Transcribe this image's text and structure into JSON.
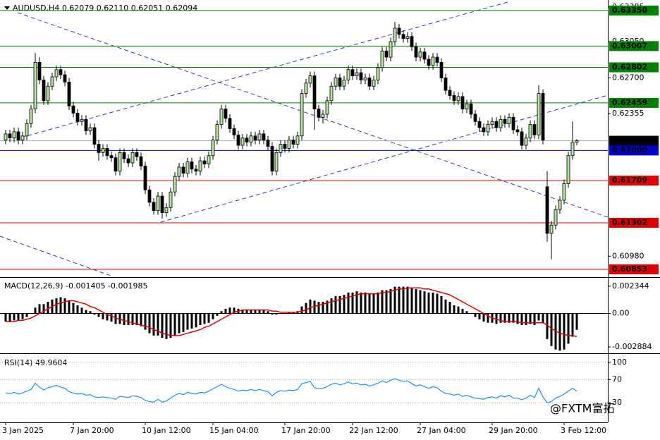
{
  "chart_data": [
    {
      "type": "candlestick",
      "title": "AUDUSD,H4  0.62079 0.62110 0.62051 0.62094",
      "watermark": "@FXTM富拓",
      "up_color": "#b5e2a0",
      "down_color": "#000000",
      "categories": [
        "3 Jan 2025",
        null,
        null,
        null,
        null,
        null,
        null,
        null,
        null,
        null,
        null,
        null,
        null,
        null,
        null,
        null,
        "7 Jan 20:00",
        null,
        null,
        null,
        null,
        null,
        null,
        null,
        null,
        null,
        null,
        null,
        null,
        null,
        null,
        null,
        null,
        "10 Jan 12:00",
        null,
        null,
        null,
        null,
        null,
        null,
        null,
        null,
        null,
        null,
        null,
        null,
        null,
        null,
        null,
        "15 Jan 04:00",
        null,
        null,
        null,
        null,
        null,
        null,
        null,
        null,
        null,
        null,
        null,
        null,
        null,
        null,
        null,
        null,
        "17 Jan 20:00",
        null,
        null,
        null,
        null,
        null,
        null,
        null,
        null,
        null,
        null,
        null,
        null,
        null,
        null,
        null,
        "22 Jan 12:00",
        null,
        null,
        null,
        null,
        null,
        null,
        null,
        null,
        null,
        null,
        null,
        null,
        null,
        null,
        null,
        "27 Jan 04:00",
        null,
        null,
        null,
        null,
        null,
        null,
        null,
        null,
        null,
        null,
        null,
        null,
        null,
        null,
        null,
        null,
        "29 Jan 20:00",
        null,
        null,
        null,
        null,
        null,
        null,
        null,
        null,
        null,
        null,
        null,
        null,
        null,
        null,
        null,
        null,
        "3 Feb 12:00",
        null,
        null,
        null
      ],
      "open": [
        0.621,
        0.6216,
        0.6212,
        0.6218,
        0.621,
        0.6214,
        0.6226,
        0.624,
        0.6285,
        0.6268,
        0.6248,
        0.6262,
        0.6271,
        0.6278,
        0.6273,
        0.6266,
        0.6243,
        0.6236,
        0.6228,
        0.623,
        0.6219,
        0.6222,
        0.6206,
        0.6198,
        0.6202,
        0.6195,
        0.6193,
        0.618,
        0.6198,
        0.6192,
        0.6188,
        0.6198,
        0.6194,
        0.6185,
        0.6162,
        0.615,
        0.6142,
        0.6156,
        0.614,
        0.6145,
        0.616,
        0.6175,
        0.6184,
        0.6178,
        0.6189,
        0.6182,
        0.618,
        0.619,
        0.6187,
        0.6195,
        0.621,
        0.6225,
        0.624,
        0.6231,
        0.6221,
        0.6215,
        0.6205,
        0.6212,
        0.6208,
        0.6214,
        0.621,
        0.6216,
        0.621,
        0.6204,
        0.618,
        0.6198,
        0.6206,
        0.6202,
        0.621,
        0.6206,
        0.6214,
        0.6255,
        0.6265,
        0.6272,
        0.624,
        0.6232,
        0.6235,
        0.6248,
        0.6262,
        0.627,
        0.6262,
        0.6268,
        0.6278,
        0.6272,
        0.6275,
        0.6268,
        0.627,
        0.6262,
        0.6268,
        0.628,
        0.6296,
        0.629,
        0.6305,
        0.6318,
        0.6312,
        0.6308,
        0.631,
        0.63,
        0.629,
        0.6295,
        0.6288,
        0.6282,
        0.629,
        0.6285,
        0.627,
        0.6258,
        0.6253,
        0.6248,
        0.6252,
        0.624,
        0.6245,
        0.6235,
        0.6228,
        0.6222,
        0.6218,
        0.6225,
        0.6228,
        0.6222,
        0.623,
        0.6226,
        0.6232,
        0.622,
        0.6218,
        0.6205,
        0.6212,
        0.6225,
        0.6215,
        0.6255,
        0.6165,
        0.612,
        0.6128,
        0.6143,
        0.6152,
        0.6168,
        0.6195,
        0.62079
      ],
      "high": [
        0.622,
        0.622,
        0.6222,
        0.6222,
        0.6218,
        0.623,
        0.6244,
        0.6294,
        0.629,
        0.6272,
        0.6266,
        0.6275,
        0.6282,
        0.6282,
        0.6277,
        0.627,
        0.6247,
        0.624,
        0.6234,
        0.6234,
        0.6226,
        0.6226,
        0.621,
        0.6206,
        0.6206,
        0.6199,
        0.6197,
        0.6202,
        0.6202,
        0.6196,
        0.6202,
        0.6202,
        0.6198,
        0.6189,
        0.6166,
        0.6154,
        0.616,
        0.616,
        0.6149,
        0.6164,
        0.6179,
        0.6188,
        0.6188,
        0.6193,
        0.6193,
        0.6186,
        0.6194,
        0.6194,
        0.6199,
        0.6214,
        0.6229,
        0.6244,
        0.6244,
        0.6235,
        0.6225,
        0.6219,
        0.6216,
        0.6216,
        0.6218,
        0.6218,
        0.622,
        0.622,
        0.6214,
        0.6208,
        0.6202,
        0.621,
        0.621,
        0.6214,
        0.6214,
        0.6218,
        0.6259,
        0.6269,
        0.6276,
        0.6276,
        0.6244,
        0.6239,
        0.6252,
        0.6266,
        0.6274,
        0.6274,
        0.6272,
        0.6282,
        0.6282,
        0.6279,
        0.6279,
        0.6274,
        0.6274,
        0.6272,
        0.6284,
        0.63,
        0.63,
        0.6309,
        0.6324,
        0.6322,
        0.6316,
        0.6314,
        0.6314,
        0.6304,
        0.6299,
        0.6299,
        0.6292,
        0.6294,
        0.6294,
        0.6289,
        0.6274,
        0.6262,
        0.6257,
        0.6256,
        0.6256,
        0.6249,
        0.6249,
        0.6239,
        0.6232,
        0.6226,
        0.6229,
        0.6232,
        0.6232,
        0.6234,
        0.6234,
        0.6236,
        0.6236,
        0.6224,
        0.6222,
        0.6216,
        0.6229,
        0.6229,
        0.6263,
        0.6259,
        0.618,
        0.6132,
        0.6147,
        0.6156,
        0.6172,
        0.6199,
        0.6228,
        0.6211
      ],
      "low": [
        0.6206,
        0.6208,
        0.6208,
        0.6206,
        0.6206,
        0.621,
        0.6222,
        0.6236,
        0.6264,
        0.6244,
        0.6244,
        0.6258,
        0.6267,
        0.6269,
        0.6262,
        0.6239,
        0.6232,
        0.6224,
        0.6224,
        0.6215,
        0.6215,
        0.6202,
        0.619,
        0.6194,
        0.6191,
        0.6189,
        0.6176,
        0.6176,
        0.6188,
        0.6184,
        0.6184,
        0.619,
        0.6181,
        0.6158,
        0.6146,
        0.6138,
        0.6138,
        0.6134,
        0.6136,
        0.6141,
        0.6156,
        0.6171,
        0.6174,
        0.6174,
        0.6178,
        0.6176,
        0.6176,
        0.6183,
        0.6183,
        0.6191,
        0.6206,
        0.6221,
        0.6227,
        0.6217,
        0.6211,
        0.6201,
        0.6201,
        0.6204,
        0.6204,
        0.6206,
        0.6206,
        0.6206,
        0.62,
        0.6176,
        0.6176,
        0.6194,
        0.6198,
        0.6198,
        0.6202,
        0.6202,
        0.621,
        0.6251,
        0.6261,
        0.622,
        0.6228,
        0.6226,
        0.6231,
        0.6244,
        0.6258,
        0.6258,
        0.6258,
        0.6264,
        0.6268,
        0.6268,
        0.6264,
        0.6264,
        0.6258,
        0.6258,
        0.6264,
        0.6276,
        0.6286,
        0.6286,
        0.6301,
        0.6308,
        0.6304,
        0.6304,
        0.6296,
        0.6286,
        0.6286,
        0.6284,
        0.6278,
        0.6278,
        0.6281,
        0.6266,
        0.6254,
        0.6249,
        0.6244,
        0.6244,
        0.6236,
        0.6236,
        0.6231,
        0.6224,
        0.6218,
        0.6214,
        0.6214,
        0.6221,
        0.6218,
        0.6218,
        0.6222,
        0.6222,
        0.6216,
        0.6214,
        0.6201,
        0.6201,
        0.6208,
        0.6211,
        0.6211,
        0.6206,
        0.6112,
        0.6095,
        0.6124,
        0.6139,
        0.6148,
        0.6164,
        0.6191,
        0.62051
      ],
      "close": [
        0.6216,
        0.6212,
        0.6218,
        0.621,
        0.6214,
        0.6226,
        0.624,
        0.6285,
        0.6268,
        0.6248,
        0.6262,
        0.6271,
        0.6278,
        0.6273,
        0.6266,
        0.6243,
        0.6236,
        0.6228,
        0.623,
        0.6219,
        0.6222,
        0.6206,
        0.6198,
        0.6202,
        0.6195,
        0.6193,
        0.618,
        0.6198,
        0.6192,
        0.6188,
        0.6198,
        0.6194,
        0.6185,
        0.6162,
        0.615,
        0.6142,
        0.6156,
        0.614,
        0.6145,
        0.616,
        0.6175,
        0.6184,
        0.6178,
        0.6189,
        0.6182,
        0.618,
        0.619,
        0.6187,
        0.6195,
        0.621,
        0.6225,
        0.624,
        0.6231,
        0.6221,
        0.6215,
        0.6205,
        0.6212,
        0.6208,
        0.6214,
        0.621,
        0.6216,
        0.621,
        0.6204,
        0.618,
        0.6198,
        0.6206,
        0.6202,
        0.621,
        0.6206,
        0.6214,
        0.6255,
        0.6265,
        0.6272,
        0.624,
        0.6232,
        0.6235,
        0.6248,
        0.6262,
        0.627,
        0.6262,
        0.6268,
        0.6278,
        0.6272,
        0.6275,
        0.6268,
        0.627,
        0.6262,
        0.6268,
        0.628,
        0.6296,
        0.629,
        0.6305,
        0.6318,
        0.6312,
        0.6308,
        0.631,
        0.63,
        0.629,
        0.6295,
        0.6288,
        0.6282,
        0.629,
        0.6285,
        0.627,
        0.6258,
        0.6253,
        0.6248,
        0.6252,
        0.624,
        0.6245,
        0.6235,
        0.6228,
        0.6222,
        0.6218,
        0.6225,
        0.6228,
        0.6222,
        0.623,
        0.6226,
        0.6232,
        0.622,
        0.6218,
        0.6205,
        0.6212,
        0.6225,
        0.6215,
        0.6255,
        0.621,
        0.612,
        0.6128,
        0.6143,
        0.6152,
        0.6168,
        0.6195,
        0.6208,
        0.62094
      ],
      "ylim": [
        0.60785,
        0.63438
      ],
      "yticks": [
        0.63385,
        {
          "value": 0.6305,
          "label": "0.63050"
        },
        {
          "value": 0.627,
          "label": "0.62700"
        },
        0.62355,
        {
          "value": 0.6098,
          "label": "0.60980"
        }
      ],
      "levels": [
        {
          "value": 0.6335,
          "label": "0.63350",
          "color": "#008000"
        },
        {
          "value": 0.63007,
          "color": "#008000"
        },
        {
          "value": 0.62802,
          "color": "#008000"
        },
        {
          "value": 0.62459,
          "color": "#008000"
        },
        {
          "value": 0.62094,
          "color": "#a9a9b8",
          "label_color": "#000000"
        },
        {
          "value": 0.62,
          "label": "0.62000",
          "color": "#0000cc"
        },
        {
          "value": 0.61709,
          "color": "#e00000"
        },
        {
          "value": 0.61302,
          "color": "#e00000"
        },
        {
          "value": 0.60853,
          "color": "#e00000"
        }
      ]
    },
    {
      "type": "macd",
      "title": "MACD(12,26,9) -0.001405 -0.001985",
      "color": "#000000",
      "signal_color": "#e00000",
      "values": [
        -0.0007,
        -0.0007,
        -0.0006,
        -0.0006,
        -0.0005,
        -0.0003,
        0,
        0.0005,
        0.0008,
        0.0008,
        0.001,
        0.0012,
        0.0013,
        0.0014,
        0.0013,
        0.0011,
        0.0009,
        0.0007,
        0.0005,
        0.0003,
        0.0002,
        -0.0001,
        -0.0003,
        -0.0005,
        -0.0006,
        -0.0007,
        -0.0009,
        -0.0009,
        -0.001,
        -0.001,
        -0.001,
        -0.001,
        -0.0011,
        -0.0014,
        -0.0017,
        -0.0019,
        -0.0019,
        -0.0021,
        -0.0022,
        -0.0021,
        -0.0019,
        -0.0017,
        -0.0016,
        -0.0014,
        -0.0013,
        -0.0012,
        -0.001,
        -0.0009,
        -0.0008,
        -0.0005,
        -0.0002,
        0.0002,
        0.0004,
        0.0005,
        0.0005,
        0.0004,
        0.0003,
        0.0003,
        0.0003,
        0.0003,
        0.0003,
        0.0003,
        0.0002,
        -0.0001,
        -0.0001,
        0,
        0,
        0.0001,
        0.0001,
        0.0002,
        0.0006,
        0.0009,
        0.0012,
        0.0011,
        0.001,
        0.001,
        0.0011,
        0.0013,
        0.0015,
        0.0015,
        0.0016,
        0.0018,
        0.0018,
        0.0019,
        0.0018,
        0.0018,
        0.0017,
        0.0017,
        0.0018,
        0.002,
        0.002,
        0.0021,
        0.0023,
        0.0023,
        0.0023,
        0.0023,
        0.0022,
        0.0021,
        0.002,
        0.0019,
        0.0018,
        0.0018,
        0.0017,
        0.0015,
        0.0012,
        0.001,
        0.0007,
        0.0006,
        0.0004,
        0.0002,
        0,
        -0.0003,
        -0.0005,
        -0.0007,
        -0.0008,
        -0.0008,
        -0.0009,
        -0.0008,
        -0.0008,
        -0.0008,
        -0.0008,
        -0.0009,
        -0.001,
        -0.001,
        -0.0009,
        -0.001,
        -0.0006,
        -0.0008,
        -0.0022,
        -0.0028,
        -0.0031,
        -0.0032,
        -0.0031,
        -0.0026,
        -0.002,
        -0.001405
      ],
      "signal": [
        -0.0007,
        -0.0007,
        -0.0007,
        -0.0006,
        -0.0006,
        -0.0005,
        -0.0004,
        -0.0002,
        0,
        0.0002,
        0.0004,
        0.0006,
        0.0008,
        0.0009,
        0.001,
        0.0011,
        0.0011,
        0.001,
        0.0009,
        0.0008,
        0.0006,
        0.0005,
        0.0003,
        0.0001,
        -0.0001,
        -0.0002,
        -0.0004,
        -0.0005,
        -0.0006,
        -0.0007,
        -0.0008,
        -0.0009,
        -0.001,
        -0.0011,
        -0.0012,
        -0.0014,
        -0.0015,
        -0.0017,
        -0.0018,
        -0.0019,
        -0.0019,
        -0.0019,
        -0.0018,
        -0.0017,
        -0.0016,
        -0.0015,
        -0.0014,
        -0.0012,
        -0.0011,
        -0.0009,
        -0.0007,
        -0.0005,
        -0.0003,
        -0.0001,
        0.0001,
        0.0002,
        0.0003,
        0.0003,
        0.0003,
        0.0003,
        0.0003,
        0.0003,
        0.0003,
        0.0002,
        0.0002,
        0.0001,
        0.0001,
        0.0001,
        0.0001,
        0.0001,
        0.0002,
        0.0003,
        0.0005,
        0.0006,
        0.0007,
        0.0008,
        0.0009,
        0.001,
        0.0011,
        0.0012,
        0.0013,
        0.0014,
        0.0015,
        0.0016,
        0.0017,
        0.0017,
        0.0017,
        0.0017,
        0.0017,
        0.0018,
        0.0018,
        0.0019,
        0.002,
        0.0021,
        0.0021,
        0.0022,
        0.0022,
        0.0022,
        0.0022,
        0.0021,
        0.0021,
        0.002,
        0.0019,
        0.0018,
        0.0017,
        0.0016,
        0.0014,
        0.0012,
        0.001,
        0.0008,
        0.0006,
        0.0004,
        0.0002,
        0,
        -0.0002,
        -0.0004,
        -0.0005,
        -0.0006,
        -0.0007,
        -0.0007,
        -0.0007,
        -0.0007,
        -0.0008,
        -0.0008,
        -0.0008,
        -0.0008,
        -0.0008,
        -0.0008,
        -0.001,
        -0.0013,
        -0.0015,
        -0.0017,
        -0.0018,
        -0.0019,
        -0.0019,
        -0.001985
      ],
      "ylim": [
        -0.003365,
        0.003005
      ],
      "yticks": [
        0.002344,
        {
          "value": 0,
          "label": "0.00"
        },
        -0.002884
      ]
    },
    {
      "type": "line",
      "title": "RSI(14) 49.9604",
      "color": "#1e90ff",
      "grid": true,
      "values": [
        47,
        46,
        48,
        45,
        47,
        50,
        53,
        64,
        57,
        52,
        56,
        58,
        60,
        57,
        55,
        49,
        47,
        45,
        46,
        43,
        44,
        40,
        39,
        40,
        39,
        38,
        36,
        41,
        40,
        39,
        42,
        41,
        39,
        34,
        32,
        31,
        36,
        31,
        33,
        38,
        43,
        46,
        44,
        48,
        46,
        45,
        48,
        47,
        50,
        54,
        58,
        62,
        58,
        55,
        53,
        50,
        52,
        51,
        53,
        51,
        53,
        51,
        49,
        42,
        48,
        51,
        50,
        52,
        51,
        53,
        63,
        65,
        67,
        56,
        54,
        55,
        58,
        62,
        64,
        61,
        63,
        66,
        63,
        64,
        61,
        62,
        59,
        61,
        64,
        68,
        65,
        69,
        72,
        69,
        67,
        68,
        63,
        59,
        61,
        58,
        55,
        58,
        56,
        50,
        46,
        45,
        43,
        45,
        41,
        43,
        40,
        38,
        37,
        36,
        39,
        40,
        38,
        42,
        40,
        43,
        38,
        38,
        35,
        38,
        43,
        39,
        55,
        40,
        30,
        32,
        38,
        41,
        45,
        50,
        55,
        49.9604
      ],
      "ylim": [
        -3,
        113.5
      ],
      "yticks": [
        100,
        70,
        30
      ]
    }
  ]
}
